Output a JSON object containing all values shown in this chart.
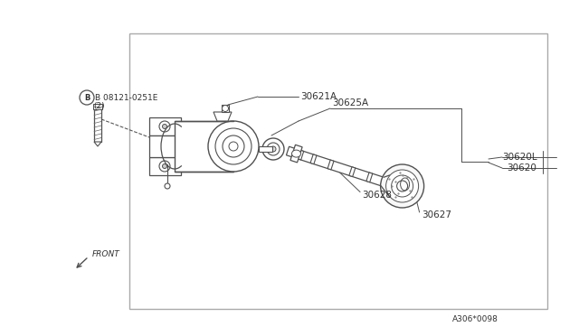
{
  "bg_color": "#ffffff",
  "border_color": "#aaaaaa",
  "line_color": "#505050",
  "text_color": "#303030",
  "fig_width": 6.4,
  "fig_height": 3.72,
  "dpi": 100,
  "labels": {
    "bolt_id": "B 08121-0251E",
    "bolt_qty": "(2)",
    "front": "FRONT",
    "part_30621A": "30621A",
    "part_30625A": "30625A",
    "part_30620": "30620",
    "part_30620L": "30620L",
    "part_30628": "30628",
    "part_30627": "30627",
    "diagram_id": "A306*0098"
  },
  "font_size": 7.5,
  "small_font": 6.5
}
